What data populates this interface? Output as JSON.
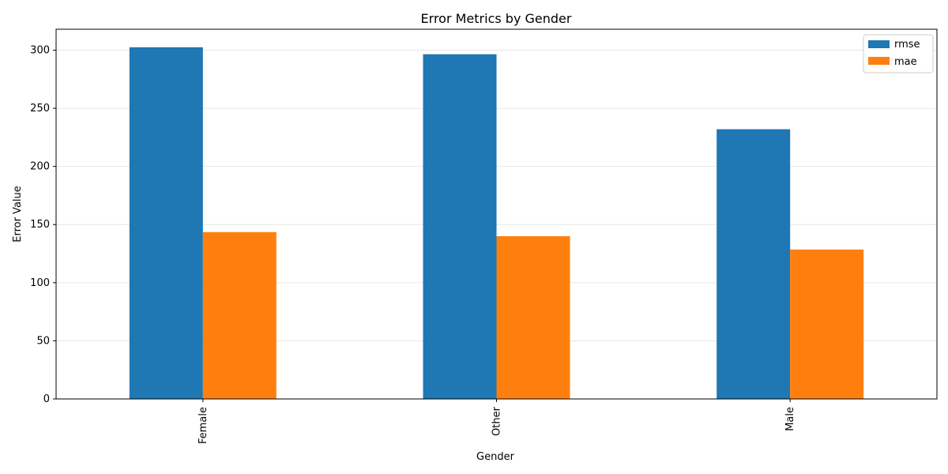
{
  "chart_data": {
    "type": "bar",
    "title": "Error Metrics by Gender",
    "xlabel": "Gender",
    "ylabel": "Error Value",
    "categories": [
      "Female",
      "Other",
      "Male"
    ],
    "series": [
      {
        "name": "rmse",
        "values": [
          302.5,
          296.5,
          232.0
        ],
        "color": "#1f77b4"
      },
      {
        "name": "mae",
        "values": [
          143.5,
          140.0,
          128.5
        ],
        "color": "#ff7f0e"
      }
    ],
    "ylim": [
      0,
      318
    ],
    "yticks": [
      0,
      50,
      100,
      150,
      200,
      250,
      300
    ],
    "grid": "horizontal",
    "legend_position": "top-right"
  }
}
